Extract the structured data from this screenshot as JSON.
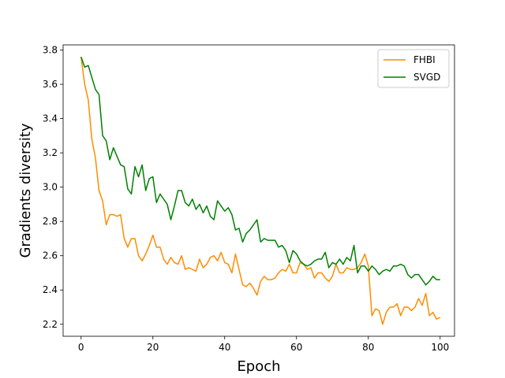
{
  "chart_data": {
    "type": "line",
    "title": "",
    "xlabel": "Epoch",
    "ylabel": "Gradients diversity",
    "xlim": [
      -5,
      104
    ],
    "ylim": [
      2.13,
      3.83
    ],
    "xticks": [
      0,
      20,
      40,
      60,
      80,
      100
    ],
    "yticks": [
      2.2,
      2.4,
      2.6,
      2.8,
      3.0,
      3.2,
      3.4,
      3.6,
      3.8
    ],
    "grid": false,
    "legend": "top-right",
    "series": [
      {
        "name": "FHBI",
        "color": "#ff8c00",
        "values": [
          3.76,
          3.6,
          3.51,
          3.28,
          3.17,
          2.98,
          2.92,
          2.78,
          2.84,
          2.84,
          2.83,
          2.84,
          2.7,
          2.65,
          2.7,
          2.7,
          2.6,
          2.57,
          2.61,
          2.66,
          2.72,
          2.65,
          2.65,
          2.58,
          2.55,
          2.59,
          2.56,
          2.55,
          2.6,
          2.52,
          2.53,
          2.52,
          2.51,
          2.58,
          2.53,
          2.55,
          2.59,
          2.6,
          2.57,
          2.62,
          2.56,
          2.55,
          2.5,
          2.61,
          2.52,
          2.43,
          2.42,
          2.44,
          2.41,
          2.37,
          2.45,
          2.48,
          2.46,
          2.46,
          2.47,
          2.5,
          2.52,
          2.51,
          2.55,
          2.5,
          2.5,
          2.56,
          2.55,
          2.52,
          2.53,
          2.47,
          2.5,
          2.5,
          2.47,
          2.45,
          2.48,
          2.55,
          2.5,
          2.5,
          2.53,
          2.52,
          2.52,
          2.53,
          2.56,
          2.61,
          2.54,
          2.25,
          2.29,
          2.28,
          2.2,
          2.27,
          2.3,
          2.3,
          2.32,
          2.25,
          2.3,
          2.3,
          2.28,
          2.3,
          2.35,
          2.31,
          2.38,
          2.25,
          2.27,
          2.23,
          2.24
        ]
      },
      {
        "name": "SVGD",
        "color": "#008000",
        "values": [
          3.76,
          3.7,
          3.71,
          3.64,
          3.57,
          3.54,
          3.3,
          3.27,
          3.16,
          3.23,
          3.18,
          3.13,
          3.12,
          2.99,
          2.96,
          3.12,
          3.06,
          3.13,
          2.98,
          3.05,
          3.06,
          2.91,
          2.96,
          2.93,
          2.9,
          2.81,
          2.89,
          2.98,
          2.98,
          2.91,
          2.89,
          2.93,
          2.87,
          2.9,
          2.85,
          2.89,
          2.83,
          2.81,
          2.92,
          2.89,
          2.86,
          2.88,
          2.84,
          2.75,
          2.76,
          2.68,
          2.73,
          2.75,
          2.78,
          2.81,
          2.68,
          2.7,
          2.69,
          2.69,
          2.69,
          2.65,
          2.66,
          2.63,
          2.56,
          2.63,
          2.61,
          2.57,
          2.55,
          2.54,
          2.55,
          2.57,
          2.58,
          2.58,
          2.62,
          2.53,
          2.56,
          2.55,
          2.58,
          2.55,
          2.59,
          2.57,
          2.66,
          2.5,
          2.54,
          2.54,
          2.51,
          2.54,
          2.52,
          2.49,
          2.51,
          2.52,
          2.51,
          2.54,
          2.54,
          2.55,
          2.54,
          2.49,
          2.47,
          2.49,
          2.49,
          2.46,
          2.43,
          2.45,
          2.48,
          2.46,
          2.46
        ]
      }
    ]
  }
}
